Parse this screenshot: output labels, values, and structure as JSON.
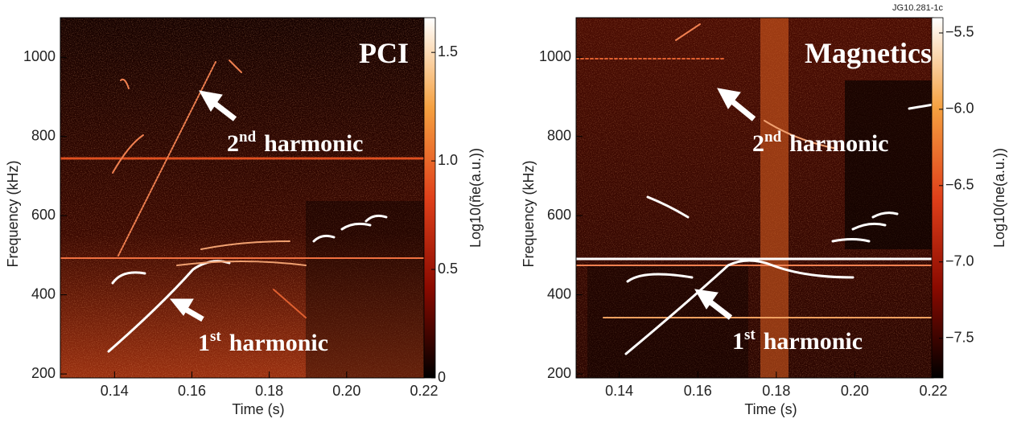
{
  "figure_label": "JG10.281-1c",
  "chart_data": [
    {
      "type": "spectrogram",
      "annotations": [
        {
          "text": "PCI"
        },
        {
          "text": "2",
          "sup": "nd",
          "rest": "harmonic"
        },
        {
          "text": "1",
          "sup": "st",
          "rest": "harmonic"
        }
      ],
      "xlabel": "Time (s)",
      "ylabel": "Frequency (kHz)",
      "xlim": [
        0.126,
        0.22
      ],
      "xticks": [
        0.14,
        0.16,
        0.18,
        {
          "value": 0.2,
          "label": "0.20"
        },
        0.22
      ],
      "ylim": [
        190,
        1100
      ],
      "yticks": [
        200,
        400,
        600,
        800,
        1000
      ],
      "colorbar": {
        "label": "Log10(ñe(a.u.))",
        "lim": [
          0,
          1.66
        ],
        "ticks": [
          0,
          0.5,
          {
            "value": 1,
            "label": "1.0"
          },
          1.5
        ],
        "colors": [
          "#000000",
          "#8a0a00",
          "#e0401a",
          "#f5a040",
          "#ffffff"
        ]
      }
    },
    {
      "type": "spectrogram",
      "annotations": [
        {
          "text": "Magnetics"
        },
        {
          "text": "2",
          "sup": "nd",
          "rest": "harmonic"
        },
        {
          "text": "1",
          "sup": "st",
          "rest": "harmonic"
        }
      ],
      "xlabel": "Time (s)",
      "ylabel": "Frequency (kHz)",
      "xlim": [
        0.129,
        0.22
      ],
      "xticks": [
        0.14,
        0.16,
        0.18,
        {
          "value": 0.2,
          "label": "0.20"
        },
        0.22
      ],
      "ylim": [
        190,
        1100
      ],
      "yticks": [
        200,
        400,
        600,
        800,
        1000
      ],
      "colorbar": {
        "label": "Log10(ne(a.u.))",
        "lim": [
          -7.76,
          -5.4
        ],
        "ticks": [
          {
            "value": -7.5,
            "label": "−7.5"
          },
          {
            "value": -7,
            "label": "−7.0"
          },
          {
            "value": -6.5,
            "label": "−6.5"
          },
          {
            "value": -6,
            "label": "−6.0"
          },
          {
            "value": -5.5,
            "label": "−5.5"
          }
        ],
        "colors": [
          "#000000",
          "#8a0a00",
          "#e0401a",
          "#f5a040",
          "#ffffff"
        ]
      }
    }
  ]
}
